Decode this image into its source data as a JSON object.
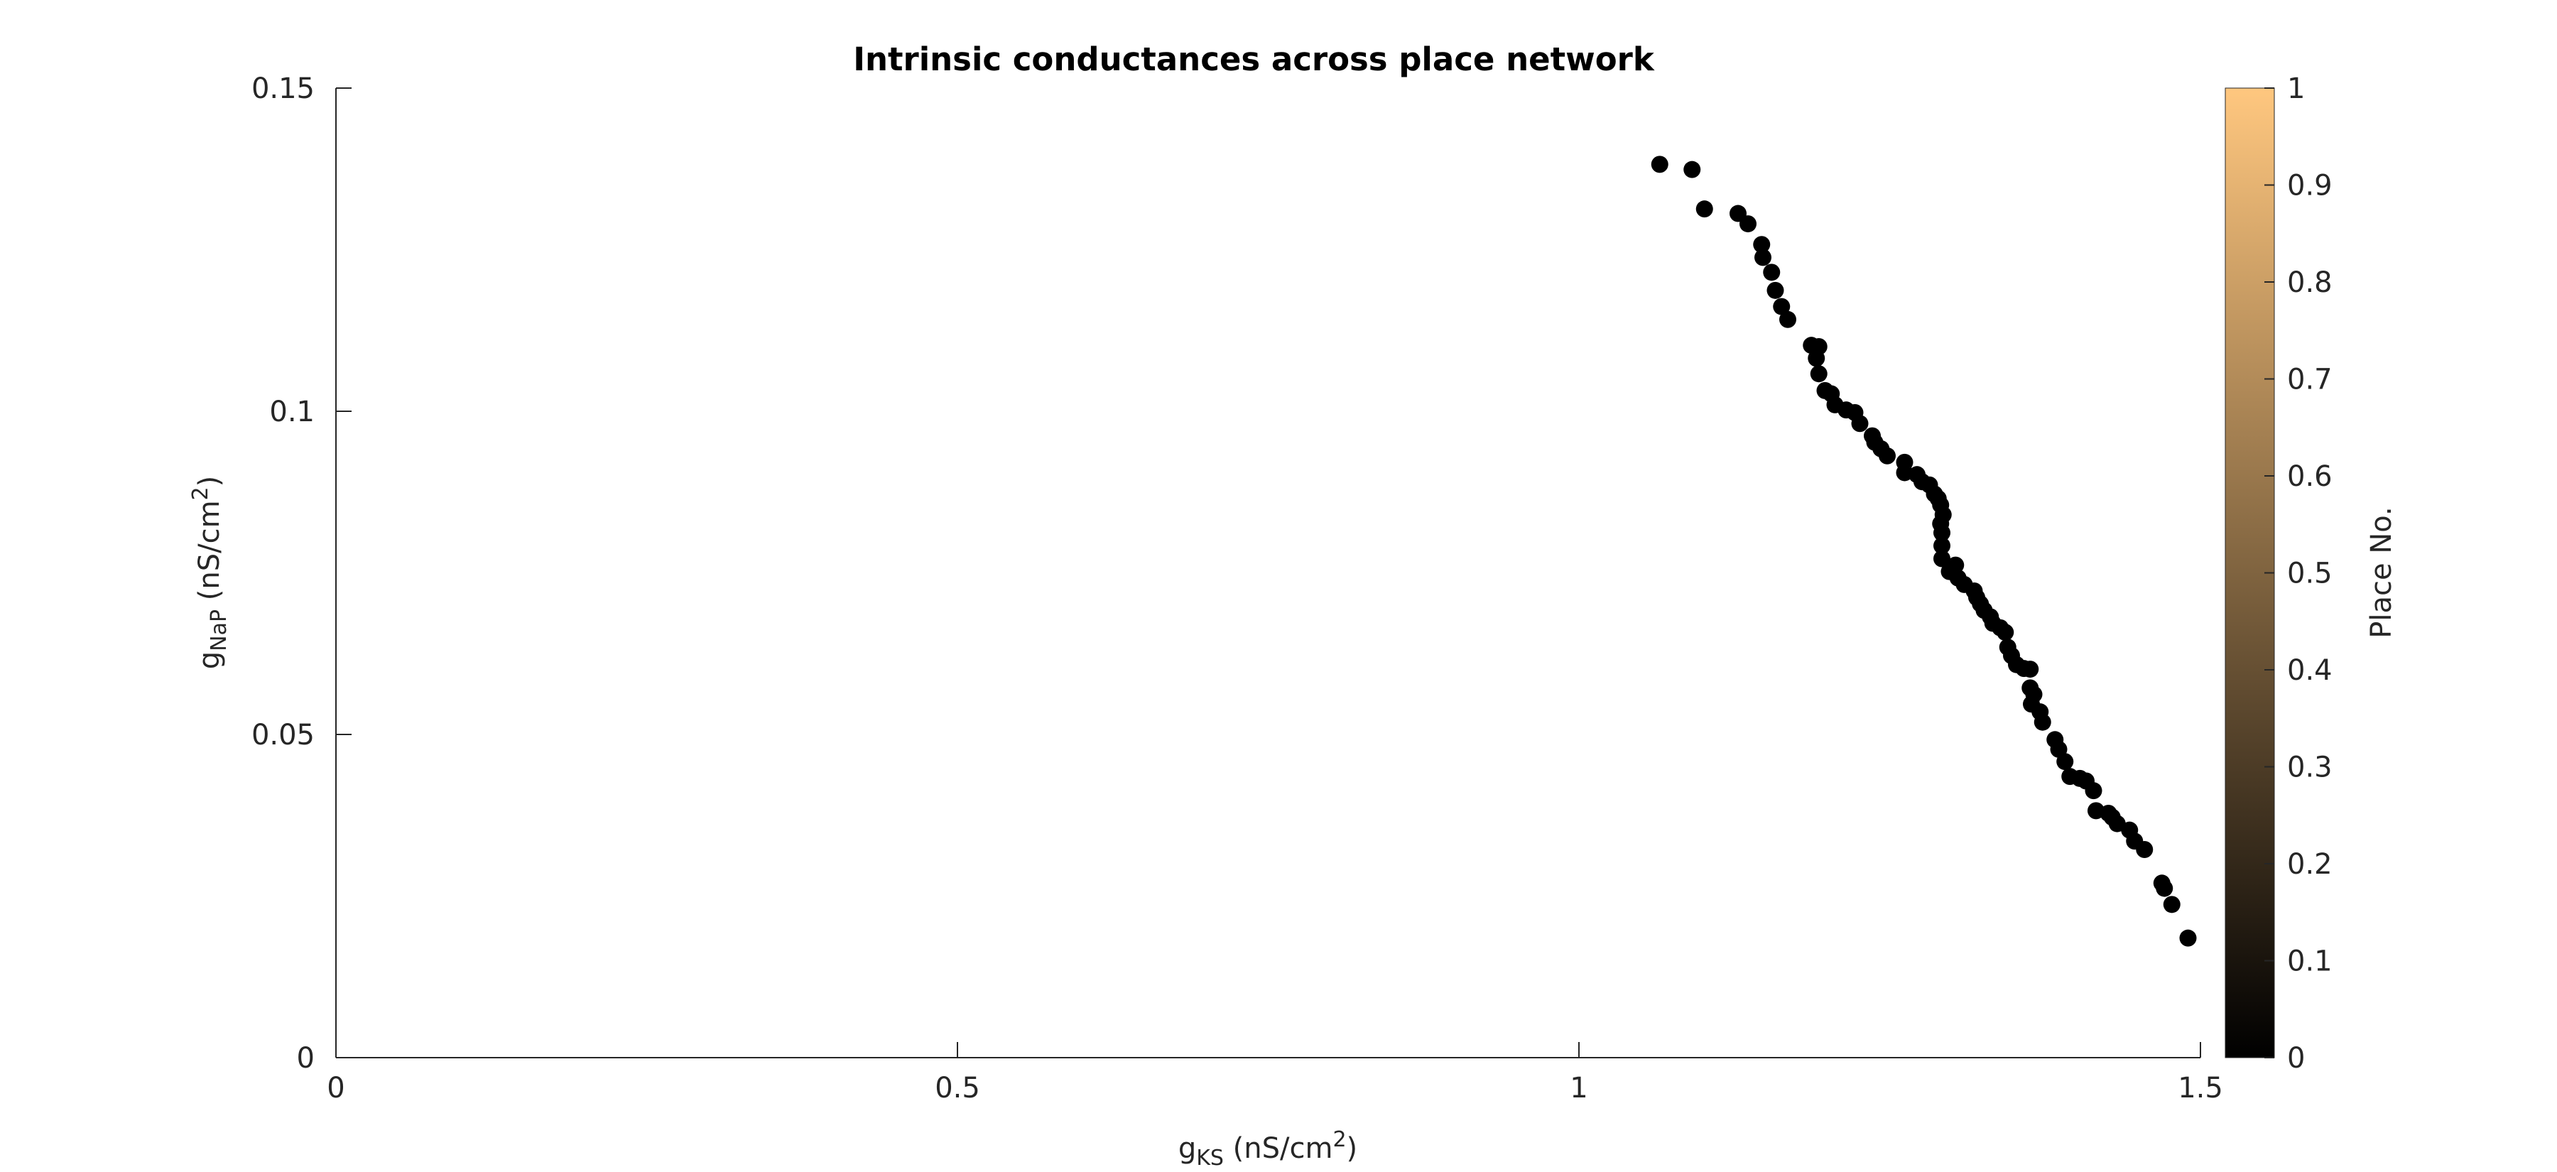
{
  "chart_data": {
    "type": "scatter",
    "title": "Intrinsic conductances across place network",
    "xlabel": {
      "base": "g",
      "sub": "KS",
      "unit_pre": " (nS/cm",
      "sup": "2",
      "unit_post": ")"
    },
    "ylabel": {
      "base": "g",
      "sub": "NaP",
      "unit_pre": " (nS/cm",
      "sup": "2",
      "unit_post": ")"
    },
    "xlim": [
      0,
      1.5
    ],
    "ylim": [
      0,
      0.15
    ],
    "xticks": [
      0,
      0.5,
      1,
      1.5
    ],
    "xtick_labels": [
      "0",
      "0.5",
      "1",
      "1.5"
    ],
    "yticks": [
      0,
      0.05,
      0.1,
      0.15
    ],
    "ytick_labels": [
      "0",
      "0.05",
      "0.1",
      "0.15"
    ],
    "grid": false,
    "marker_color": "#000000",
    "colorbar": {
      "label": "Place No.",
      "range": [
        0,
        1
      ],
      "ticks": [
        0,
        0.1,
        0.2,
        0.3,
        0.4,
        0.5,
        0.6,
        0.7,
        0.8,
        0.9,
        1
      ],
      "tick_labels": [
        "0",
        "0.1",
        "0.2",
        "0.3",
        "0.4",
        "0.5",
        "0.6",
        "0.7",
        "0.8",
        "0.9",
        "1"
      ],
      "colormap": "copper",
      "color_low": "#000000",
      "color_high": "#ffc77f"
    },
    "points": [
      [
        1.065,
        0.1382
      ],
      [
        1.091,
        0.1374
      ],
      [
        1.101,
        0.1313
      ],
      [
        1.128,
        0.1306
      ],
      [
        1.136,
        0.129
      ],
      [
        1.147,
        0.1258
      ],
      [
        1.148,
        0.1238
      ],
      [
        1.155,
        0.1215
      ],
      [
        1.158,
        0.1187
      ],
      [
        1.163,
        0.1162
      ],
      [
        1.168,
        0.1142
      ],
      [
        1.187,
        0.1102
      ],
      [
        1.193,
        0.11
      ],
      [
        1.191,
        0.1082
      ],
      [
        1.193,
        0.1058
      ],
      [
        1.198,
        0.1032
      ],
      [
        1.203,
        0.1027
      ],
      [
        1.206,
        0.101
      ],
      [
        1.215,
        0.1002
      ],
      [
        1.222,
        0.0998
      ],
      [
        1.226,
        0.0981
      ],
      [
        1.236,
        0.0962
      ],
      [
        1.238,
        0.0952
      ],
      [
        1.243,
        0.0942
      ],
      [
        1.248,
        0.0931
      ],
      [
        1.262,
        0.0921
      ],
      [
        1.262,
        0.0905
      ],
      [
        1.272,
        0.0902
      ],
      [
        1.276,
        0.0891
      ],
      [
        1.282,
        0.0886
      ],
      [
        1.286,
        0.0872
      ],
      [
        1.289,
        0.0865
      ],
      [
        1.291,
        0.0855
      ],
      [
        1.293,
        0.084
      ],
      [
        1.291,
        0.0826
      ],
      [
        1.292,
        0.0812
      ],
      [
        1.292,
        0.0792
      ],
      [
        1.292,
        0.0772
      ],
      [
        1.303,
        0.0762
      ],
      [
        1.298,
        0.0752
      ],
      [
        1.305,
        0.0742
      ],
      [
        1.31,
        0.0732
      ],
      [
        1.318,
        0.0722
      ],
      [
        1.32,
        0.0712
      ],
      [
        1.323,
        0.0702
      ],
      [
        1.326,
        0.0692
      ],
      [
        1.331,
        0.0682
      ],
      [
        1.333,
        0.0672
      ],
      [
        1.339,
        0.0665
      ],
      [
        1.343,
        0.0658
      ],
      [
        1.345,
        0.0635
      ],
      [
        1.348,
        0.0622
      ],
      [
        1.352,
        0.0608
      ],
      [
        1.358,
        0.0602
      ],
      [
        1.363,
        0.0601
      ],
      [
        1.363,
        0.0572
      ],
      [
        1.366,
        0.0562
      ],
      [
        1.364,
        0.0547
      ],
      [
        1.371,
        0.0535
      ],
      [
        1.373,
        0.0519
      ],
      [
        1.383,
        0.0492
      ],
      [
        1.386,
        0.0477
      ],
      [
        1.391,
        0.0458
      ],
      [
        1.395,
        0.0435
      ],
      [
        1.403,
        0.0432
      ],
      [
        1.408,
        0.0428
      ],
      [
        1.414,
        0.0413
      ],
      [
        1.416,
        0.0382
      ],
      [
        1.426,
        0.0378
      ],
      [
        1.429,
        0.0372
      ],
      [
        1.433,
        0.0362
      ],
      [
        1.443,
        0.0352
      ],
      [
        1.447,
        0.0335
      ],
      [
        1.455,
        0.0322
      ],
      [
        1.469,
        0.027
      ],
      [
        1.471,
        0.0262
      ],
      [
        1.477,
        0.0237
      ],
      [
        1.49,
        0.0185
      ]
    ]
  }
}
